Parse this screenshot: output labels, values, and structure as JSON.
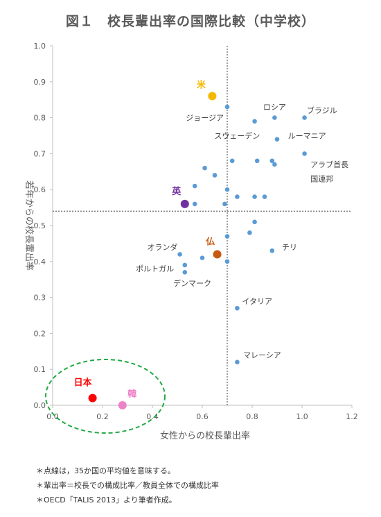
{
  "title": "図１　校長輩出率の国際比較（中学校）",
  "notes": [
    "＊点線は，35か国の平均値を意味する。",
    "＊輩出率＝校長での構成比率／教員全体での構成比率",
    "＊OECD「TALIS 2013」より筆者作成。"
  ],
  "chart_data": {
    "type": "scatter",
    "xlabel": "女性からの校長輩出率",
    "ylabel": "若年からの校長輩出率",
    "xlim": [
      0,
      1.2
    ],
    "ylim": [
      0,
      1.0
    ],
    "xticks": [
      "0.0",
      "0.2",
      "0.4",
      "0.6",
      "0.8",
      "1.0",
      "1.2"
    ],
    "yticks": [
      "0.0",
      "0.1",
      "0.2",
      "0.3",
      "0.4",
      "0.5",
      "0.6",
      "0.7",
      "0.8",
      "0.9",
      "1.0"
    ],
    "grid": false,
    "mean_lines": {
      "x": 0.7,
      "y": 0.54
    },
    "colors": {
      "default": "#5b9bd5",
      "us": "#f5b800",
      "uk": "#7030a0",
      "fr": "#c55a11",
      "jp": "#ff0000",
      "kr": "#ee82c8",
      "ellipse": "#22aa44"
    },
    "points": [
      {
        "x": 0.7,
        "y": 0.83
      },
      {
        "x": 0.81,
        "y": 0.79
      },
      {
        "x": 0.89,
        "y": 0.8
      },
      {
        "x": 1.01,
        "y": 0.8
      },
      {
        "x": 0.9,
        "y": 0.74
      },
      {
        "x": 1.01,
        "y": 0.7
      },
      {
        "x": 0.72,
        "y": 0.68
      },
      {
        "x": 0.82,
        "y": 0.68
      },
      {
        "x": 0.88,
        "y": 0.68
      },
      {
        "x": 0.89,
        "y": 0.67
      },
      {
        "x": 0.61,
        "y": 0.66
      },
      {
        "x": 0.65,
        "y": 0.64
      },
      {
        "x": 0.57,
        "y": 0.61
      },
      {
        "x": 0.7,
        "y": 0.6
      },
      {
        "x": 0.74,
        "y": 0.58
      },
      {
        "x": 0.81,
        "y": 0.58
      },
      {
        "x": 0.85,
        "y": 0.58
      },
      {
        "x": 0.69,
        "y": 0.56
      },
      {
        "x": 0.57,
        "y": 0.56
      },
      {
        "x": 0.81,
        "y": 0.51
      },
      {
        "x": 0.79,
        "y": 0.48
      },
      {
        "x": 0.7,
        "y": 0.47
      },
      {
        "x": 0.88,
        "y": 0.43
      },
      {
        "x": 0.51,
        "y": 0.42
      },
      {
        "x": 0.6,
        "y": 0.41
      },
      {
        "x": 0.53,
        "y": 0.39
      },
      {
        "x": 0.53,
        "y": 0.37
      },
      {
        "x": 0.7,
        "y": 0.4
      },
      {
        "x": 0.74,
        "y": 0.27
      },
      {
        "x": 0.74,
        "y": 0.12
      },
      {
        "x": 0.64,
        "y": 0.86,
        "highlight": "us",
        "label": "米"
      },
      {
        "x": 0.53,
        "y": 0.56,
        "highlight": "uk",
        "label": "英"
      },
      {
        "x": 0.66,
        "y": 0.42,
        "highlight": "fr",
        "label": "仏"
      },
      {
        "x": 0.16,
        "y": 0.02,
        "highlight": "jp",
        "label": "日本"
      },
      {
        "x": 0.28,
        "y": 0.0,
        "highlight": "kr",
        "label": "韓"
      }
    ],
    "annotations": [
      {
        "text": "ロシア",
        "x": 0.89,
        "y": 0.83
      },
      {
        "text": "ブラジル",
        "x": 1.08,
        "y": 0.82
      },
      {
        "text": "ジョージア",
        "x": 0.61,
        "y": 0.8
      },
      {
        "text": "スウェーデン",
        "x": 0.74,
        "y": 0.75
      },
      {
        "text": "ルーマニア",
        "x": 1.02,
        "y": 0.75
      },
      {
        "text": "アラブ首長",
        "x": 1.11,
        "y": 0.67
      },
      {
        "text": "国連邦",
        "x": 1.08,
        "y": 0.63
      },
      {
        "text": "オランダ",
        "x": 0.44,
        "y": 0.44
      },
      {
        "text": "チリ",
        "x": 0.95,
        "y": 0.44
      },
      {
        "text": "ポルトガル",
        "x": 0.41,
        "y": 0.38
      },
      {
        "text": "デンマーク",
        "x": 0.56,
        "y": 0.34
      },
      {
        "text": "イタリア",
        "x": 0.82,
        "y": 0.29
      },
      {
        "text": "マレーシア",
        "x": 0.84,
        "y": 0.14
      }
    ]
  }
}
